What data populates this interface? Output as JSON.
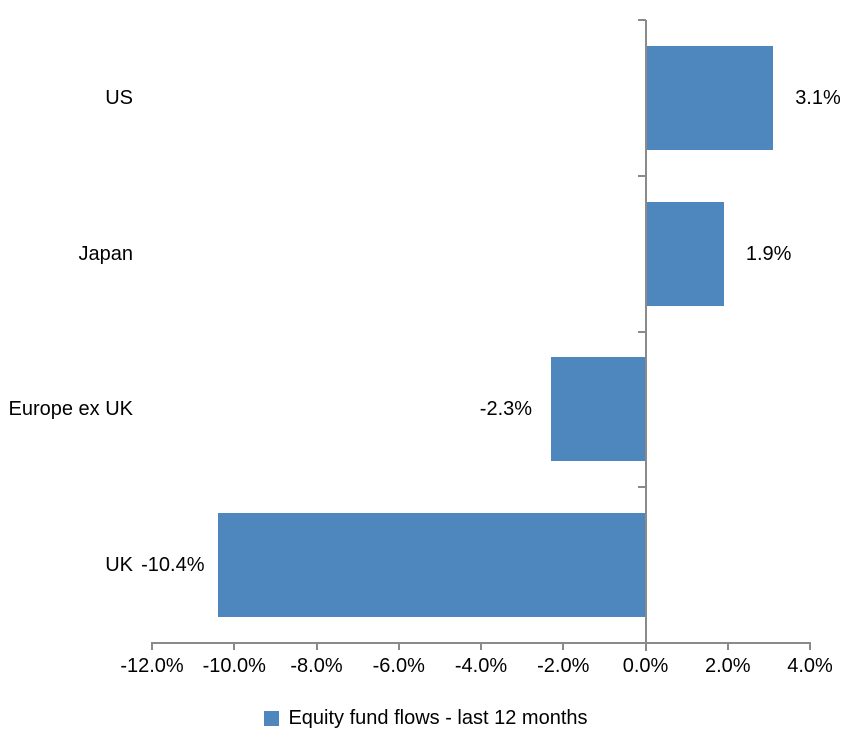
{
  "chart_data": {
    "type": "bar",
    "orientation": "horizontal",
    "title": "",
    "xlabel": "",
    "ylabel": "",
    "categories": [
      "US",
      "Japan",
      "Europe ex UK",
      "UK"
    ],
    "series": [
      {
        "name": "Equity fund flows - last 12 months",
        "values": [
          3.1,
          1.9,
          -2.3,
          -10.4
        ],
        "labels": [
          "3.1%",
          "1.9%",
          "-2.3%",
          "-10.4%"
        ],
        "color": "#4E87BD"
      }
    ],
    "xlim": [
      -12,
      4
    ],
    "x_ticks": [
      -12,
      -10,
      -8,
      -6,
      -4,
      -2,
      0,
      2,
      4
    ],
    "x_tick_labels": [
      "-12.0%",
      "-10.0%",
      "-8.0%",
      "-6.0%",
      "-4.0%",
      "-2.0%",
      "0.0%",
      "2.0%",
      "4.0%"
    ],
    "grid": false,
    "legend": {
      "position": "bottom",
      "entries": [
        "Equity fund flows - last 12 months"
      ]
    },
    "colors": {
      "bar": "#4E87BD",
      "axis": "#8A8A8A",
      "text": "#000000",
      "background": "#FFFFFF"
    }
  }
}
